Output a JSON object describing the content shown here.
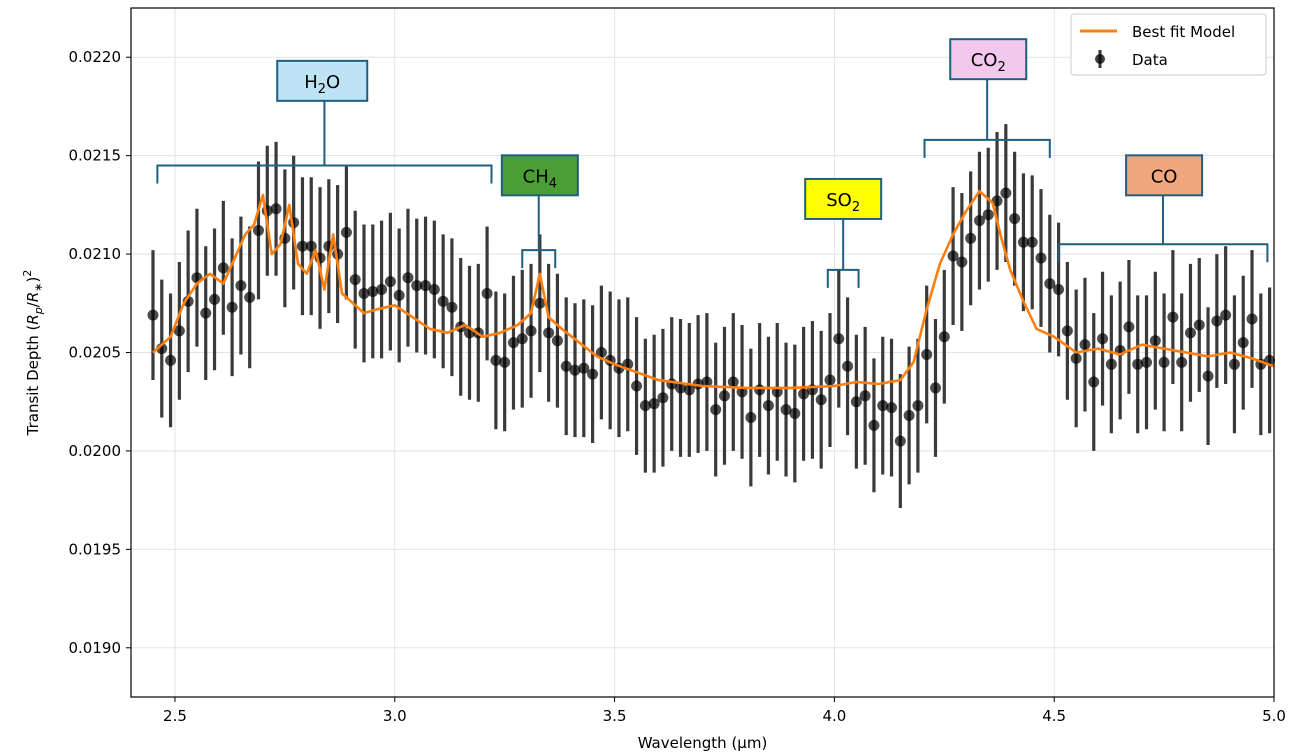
{
  "chart_data": {
    "type": "scatter",
    "xlabel": "Wavelength (μm)",
    "ylabel_main": "Transit Depth (",
    "ylabel_math": "R",
    "ylabel_sub_p": "p",
    "ylabel_slash": "/",
    "ylabel_math2": "R",
    "ylabel_sub_star": "∗",
    "ylabel_close": ")",
    "ylabel_sup": "2",
    "xlim": [
      2.4,
      5.0
    ],
    "ylim": [
      0.01875,
      0.02225
    ],
    "xticks": [
      2.5,
      3.0,
      3.5,
      4.0,
      4.5,
      5.0
    ],
    "xtick_labels": [
      "2.5",
      "3.0",
      "3.5",
      "4.0",
      "4.5",
      "5.0"
    ],
    "yticks": [
      0.019,
      0.0195,
      0.02,
      0.0205,
      0.021,
      0.0215,
      0.022
    ],
    "ytick_labels": [
      "0.0190",
      "0.0195",
      "0.0200",
      "0.0205",
      "0.0210",
      "0.0215",
      "0.0220"
    ],
    "grid": true,
    "legend": {
      "position": "top-right",
      "model_label": "Best fit Model",
      "data_label": "Data"
    },
    "colors": {
      "model": "#ff7f0e",
      "data": "#000000",
      "bracket": "#1f5f7f"
    },
    "model": {
      "name": "Best fit Model",
      "x": [
        2.45,
        2.49,
        2.52,
        2.55,
        2.58,
        2.61,
        2.64,
        2.66,
        2.68,
        2.7,
        2.72,
        2.74,
        2.76,
        2.78,
        2.8,
        2.82,
        2.84,
        2.86,
        2.88,
        2.9,
        2.93,
        2.96,
        3.0,
        3.04,
        3.08,
        3.12,
        3.16,
        3.2,
        3.24,
        3.28,
        3.31,
        3.33,
        3.35,
        3.38,
        3.42,
        3.46,
        3.5,
        3.55,
        3.6,
        3.7,
        3.8,
        3.9,
        4.0,
        4.05,
        4.1,
        4.15,
        4.18,
        4.21,
        4.24,
        4.27,
        4.3,
        4.33,
        4.36,
        4.38,
        4.4,
        4.43,
        4.46,
        4.5,
        4.55,
        4.6,
        4.65,
        4.7,
        4.75,
        4.8,
        4.85,
        4.9,
        4.95,
        5.0
      ],
      "y": [
        0.0205,
        0.02058,
        0.02075,
        0.02085,
        0.0209,
        0.02085,
        0.021,
        0.0211,
        0.02115,
        0.0213,
        0.021,
        0.02105,
        0.02125,
        0.02095,
        0.0209,
        0.02102,
        0.02082,
        0.0211,
        0.0208,
        0.02076,
        0.0207,
        0.02072,
        0.02074,
        0.02068,
        0.02062,
        0.0206,
        0.02064,
        0.02058,
        0.0206,
        0.02064,
        0.0207,
        0.0209,
        0.02068,
        0.02062,
        0.02055,
        0.02048,
        0.02044,
        0.0204,
        0.02036,
        0.02033,
        0.02032,
        0.02032,
        0.02033,
        0.02035,
        0.02034,
        0.02036,
        0.02045,
        0.02072,
        0.02095,
        0.0211,
        0.02122,
        0.02132,
        0.02126,
        0.02108,
        0.02092,
        0.02076,
        0.02062,
        0.02058,
        0.0205,
        0.02052,
        0.02049,
        0.02054,
        0.02052,
        0.0205,
        0.02048,
        0.0205,
        0.02047,
        0.02043
      ]
    },
    "data": {
      "name": "Data",
      "x": [
        2.45,
        2.47,
        2.49,
        2.51,
        2.53,
        2.55,
        2.57,
        2.59,
        2.61,
        2.63,
        2.65,
        2.67,
        2.69,
        2.71,
        2.73,
        2.75,
        2.77,
        2.79,
        2.81,
        2.83,
        2.85,
        2.87,
        2.89,
        2.91,
        2.93,
        2.95,
        2.97,
        2.99,
        3.01,
        3.03,
        3.05,
        3.07,
        3.09,
        3.11,
        3.13,
        3.15,
        3.17,
        3.19,
        3.21,
        3.23,
        3.25,
        3.27,
        3.29,
        3.31,
        3.33,
        3.35,
        3.37,
        3.39,
        3.41,
        3.43,
        3.45,
        3.47,
        3.49,
        3.51,
        3.53,
        3.55,
        3.57,
        3.59,
        3.61,
        3.63,
        3.65,
        3.67,
        3.69,
        3.71,
        3.73,
        3.75,
        3.77,
        3.79,
        3.81,
        3.83,
        3.85,
        3.87,
        3.89,
        3.91,
        3.93,
        3.95,
        3.97,
        3.99,
        4.01,
        4.03,
        4.05,
        4.07,
        4.09,
        4.11,
        4.13,
        4.15,
        4.17,
        4.19,
        4.21,
        4.23,
        4.25,
        4.27,
        4.29,
        4.31,
        4.33,
        4.35,
        4.37,
        4.39,
        4.41,
        4.43,
        4.45,
        4.47,
        4.49,
        4.51,
        4.53,
        4.55,
        4.57,
        4.59,
        4.61,
        4.63,
        4.65,
        4.67,
        4.69,
        4.71,
        4.73,
        4.75,
        4.77,
        4.79,
        4.81,
        4.83,
        4.85,
        4.87,
        4.89,
        4.91,
        4.93,
        4.95,
        4.97,
        4.99
      ],
      "y": [
        0.02069,
        0.02052,
        0.02046,
        0.02061,
        0.02076,
        0.02088,
        0.0207,
        0.02077,
        0.02093,
        0.02073,
        0.02084,
        0.02078,
        0.02112,
        0.02122,
        0.02123,
        0.02108,
        0.02116,
        0.02104,
        0.02104,
        0.02098,
        0.02104,
        0.021,
        0.02111,
        0.02087,
        0.0208,
        0.02081,
        0.02082,
        0.02086,
        0.02079,
        0.02088,
        0.02084,
        0.02084,
        0.02082,
        0.02076,
        0.02073,
        0.02063,
        0.0206,
        0.0206,
        0.0208,
        0.02046,
        0.02045,
        0.02055,
        0.02057,
        0.02061,
        0.02075,
        0.0206,
        0.02056,
        0.02043,
        0.02041,
        0.02042,
        0.02039,
        0.0205,
        0.02046,
        0.02042,
        0.02044,
        0.02033,
        0.02023,
        0.02024,
        0.02027,
        0.02034,
        0.02032,
        0.02031,
        0.02034,
        0.02035,
        0.02021,
        0.02028,
        0.02035,
        0.0203,
        0.02017,
        0.02031,
        0.02023,
        0.0203,
        0.02021,
        0.02019,
        0.02029,
        0.02031,
        0.02026,
        0.02036,
        0.02057,
        0.02043,
        0.02025,
        0.02028,
        0.02013,
        0.02023,
        0.02022,
        0.02005,
        0.02018,
        0.02023,
        0.02049,
        0.02032,
        0.02058,
        0.02099,
        0.02096,
        0.02108,
        0.02117,
        0.0212,
        0.02127,
        0.02131,
        0.02118,
        0.02106,
        0.02106,
        0.02098,
        0.02085,
        0.02082,
        0.02061,
        0.02047,
        0.02054,
        0.02035,
        0.02057,
        0.02044,
        0.02051,
        0.02063,
        0.02044,
        0.02045,
        0.02056,
        0.02045,
        0.02068,
        0.02045,
        0.0206,
        0.02064,
        0.02038,
        0.02066,
        0.02069,
        0.02044,
        0.02055,
        0.02067,
        0.02044,
        0.02046
      ],
      "err": [
        0.00033,
        0.00035,
        0.00034,
        0.00035,
        0.00036,
        0.00035,
        0.00034,
        0.00036,
        0.00034,
        0.00035,
        0.00035,
        0.00036,
        0.00035,
        0.00033,
        0.00034,
        0.00035,
        0.00034,
        0.00035,
        0.00035,
        0.00036,
        0.00034,
        0.00035,
        0.00034,
        0.00035,
        0.00035,
        0.00034,
        0.00035,
        0.00035,
        0.00034,
        0.00035,
        0.00034,
        0.00035,
        0.00035,
        0.00034,
        0.00035,
        0.00035,
        0.00034,
        0.00035,
        0.00034,
        0.00035,
        0.00035,
        0.00034,
        0.00035,
        0.00034,
        0.00035,
        0.00035,
        0.00034,
        0.00035,
        0.00034,
        0.00035,
        0.00035,
        0.00034,
        0.00035,
        0.00035,
        0.00034,
        0.00035,
        0.00034,
        0.00035,
        0.00035,
        0.00034,
        0.00035,
        0.00034,
        0.00035,
        0.00035,
        0.00034,
        0.00035,
        0.00035,
        0.00034,
        0.00035,
        0.00034,
        0.00035,
        0.00035,
        0.00034,
        0.00035,
        0.00034,
        0.00035,
        0.00035,
        0.00034,
        0.00035,
        0.00035,
        0.00034,
        0.00035,
        0.00034,
        0.00035,
        0.00035,
        0.00034,
        0.00035,
        0.00034,
        0.00035,
        0.00035,
        0.00034,
        0.00035,
        0.00035,
        0.00034,
        0.00035,
        0.00034,
        0.00035,
        0.00035,
        0.00034,
        0.00035,
        0.00034,
        0.00035,
        0.00035,
        0.00034,
        0.00035,
        0.00035,
        0.00034,
        0.00035,
        0.00034,
        0.00035,
        0.00035,
        0.00034,
        0.00035,
        0.00034,
        0.00035,
        0.00035,
        0.00034,
        0.00035,
        0.00035,
        0.00034,
        0.00035,
        0.00034,
        0.00035,
        0.00035,
        0.00034,
        0.00035,
        0.00036,
        0.00037
      ]
    },
    "annotations": [
      {
        "id": "h2o",
        "base": "H",
        "sub": "2",
        "tail": "O",
        "fill": "#bde3f5",
        "bracket_x": [
          2.46,
          3.22
        ],
        "bracket_y": 0.02145,
        "label_x": 2.835,
        "label_y": 0.02188
      },
      {
        "id": "ch4",
        "base": "CH",
        "sub": "4",
        "tail": "",
        "fill": "#4a9e34",
        "bracket_x": [
          3.29,
          3.365
        ],
        "bracket_y": 0.02102,
        "label_x": 3.33,
        "label_y": 0.0214
      },
      {
        "id": "so2",
        "base": "SO",
        "sub": "2",
        "tail": "",
        "fill": "#ffff00",
        "bracket_x": [
          3.985,
          4.055
        ],
        "bracket_y": 0.02092,
        "label_x": 4.02,
        "label_y": 0.02128
      },
      {
        "id": "co2",
        "base": "CO",
        "sub": "2",
        "tail": "",
        "fill": "#f2c9ec",
        "bracket_x": [
          4.205,
          4.49
        ],
        "bracket_y": 0.02158,
        "label_x": 4.35,
        "label_y": 0.02199
      },
      {
        "id": "co",
        "base": "CO",
        "sub": "",
        "tail": "",
        "fill": "#f2a67d",
        "bracket_x": [
          4.51,
          4.985
        ],
        "bracket_y": 0.02105,
        "label_x": 4.75,
        "label_y": 0.0214
      }
    ]
  }
}
